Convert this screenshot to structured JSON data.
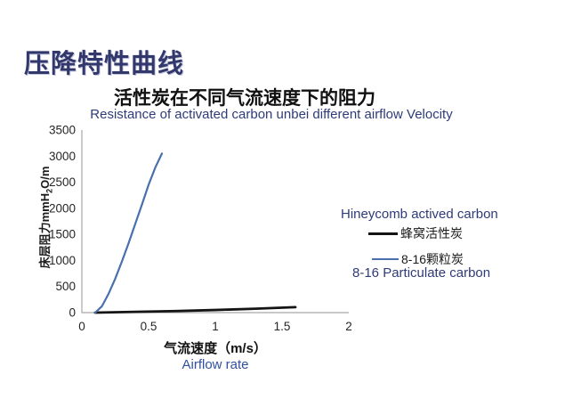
{
  "slide": {
    "title": "压降特性曲线"
  },
  "colors": {
    "slide_title": "#32386b",
    "navy_text": "#2e3b78",
    "airflow_rate_text": "#3050a0",
    "axis_line": "#a6a6a6",
    "honeycomb_line": "#141414",
    "particulate_line": "#4a6fad"
  },
  "chart_data": {
    "type": "line",
    "title": "活性炭在不同气流速度下的阻力",
    "subtitle": "Resistance of activated carbon unbei different airflow Velocity",
    "xlabel": "气流速度（m/s）",
    "xlabel_en": "Airflow rate",
    "ylabel": "床层阻力mmH2O/m",
    "ylabel_parts": {
      "prefix": "床层阻力mmH",
      "sub": "2",
      "suffix": "O/m"
    },
    "xlim": [
      0,
      2
    ],
    "ylim": [
      0,
      3500
    ],
    "x_ticks": [
      "0",
      "0.5",
      "1",
      "1.5",
      "2"
    ],
    "x_tick_values": [
      0,
      0.5,
      1,
      1.5,
      2
    ],
    "y_ticks": [
      "0",
      "500",
      "1000",
      "1500",
      "2000",
      "2500",
      "3000",
      "3500"
    ],
    "y_tick_values": [
      0,
      500,
      1000,
      1500,
      2000,
      2500,
      3000,
      3500
    ],
    "grid": false,
    "legend_position": "right",
    "series": [
      {
        "name": "蜂窝活性炭",
        "name_en": "Hineycomb actived carbon",
        "color": "#141414",
        "stroke_width": 2.8,
        "x": [
          0.1,
          0.4,
          0.7,
          1.0,
          1.3,
          1.6
        ],
        "y": [
          0,
          15,
          30,
          50,
          75,
          105
        ]
      },
      {
        "name": "8-16颗粒炭",
        "name_en": "8-16 Particulate carbon",
        "color": "#4a6fad",
        "stroke_width": 2.2,
        "x": [
          0.1,
          0.15,
          0.2,
          0.25,
          0.3,
          0.35,
          0.4,
          0.45,
          0.5,
          0.55,
          0.6
        ],
        "y": [
          0,
          120,
          360,
          650,
          980,
          1330,
          1700,
          2070,
          2450,
          2780,
          3050
        ]
      }
    ]
  },
  "legend": {
    "title_en": "Hineycomb actived carbon",
    "caption_en": "8-16 Particulate carbon"
  }
}
